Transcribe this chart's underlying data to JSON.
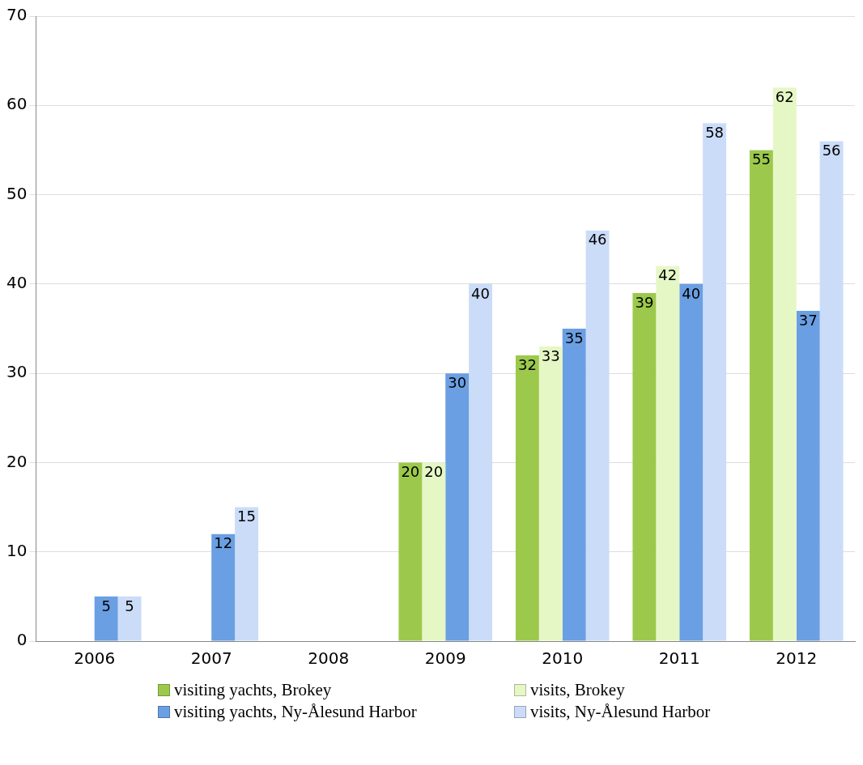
{
  "chart_data": {
    "type": "bar",
    "categories": [
      "2006",
      "2007",
      "2008",
      "2009",
      "2010",
      "2011",
      "2012"
    ],
    "series": [
      {
        "name": "visiting yachts, Brokey",
        "color": "#9cc94c",
        "values": [
          null,
          null,
          null,
          20,
          32,
          39,
          55
        ]
      },
      {
        "name": "visits, Brokey",
        "color": "#e6f7c6",
        "values": [
          null,
          null,
          null,
          20,
          33,
          42,
          62
        ]
      },
      {
        "name": "visiting yachts, Ny-Ålesund Harbor",
        "color": "#6b9fe3",
        "values": [
          5,
          12,
          null,
          30,
          35,
          40,
          37
        ]
      },
      {
        "name": "visits, Ny-Ålesund Harbor",
        "color": "#cadcf8",
        "values": [
          5,
          15,
          null,
          40,
          46,
          58,
          56
        ]
      }
    ],
    "ylim": [
      0,
      70
    ],
    "yticks": [
      0,
      10,
      20,
      30,
      40,
      50,
      60,
      70
    ],
    "grid": "y",
    "legend": "bottom",
    "data_labels": true
  }
}
